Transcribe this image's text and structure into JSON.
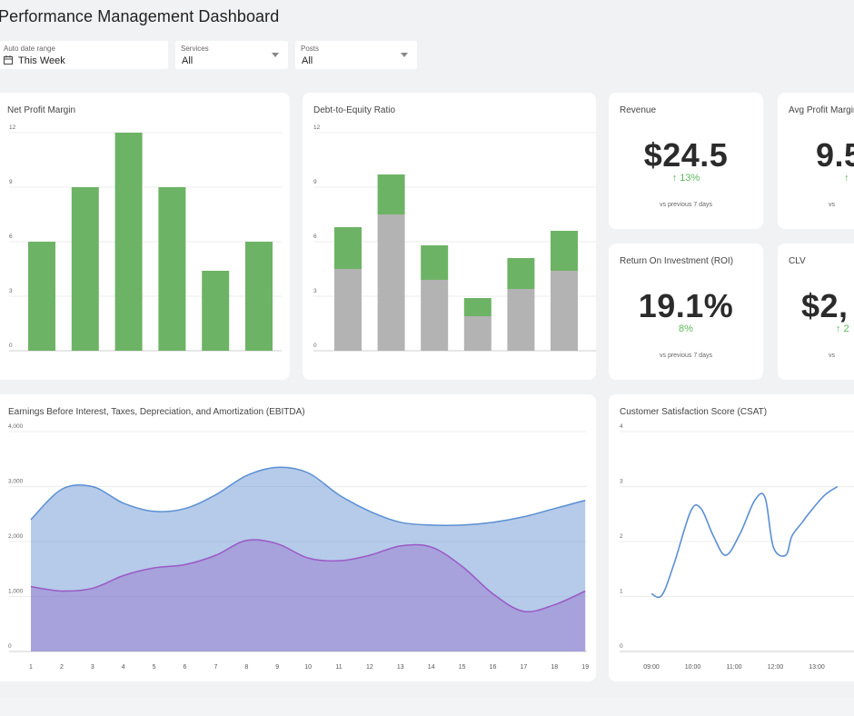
{
  "header": {
    "title": "Performance Management Dashboard"
  },
  "filters": {
    "date": {
      "label": "Auto date range",
      "value": "This Week"
    },
    "services": {
      "label": "Services",
      "value": "All"
    },
    "posts": {
      "label": "Posts",
      "value": "All"
    }
  },
  "colors": {
    "green": "#6db365",
    "gray": "#b3b3b3",
    "blue": "#5b8fd4",
    "purple": "#9b59c6",
    "positive": "#5cb85c"
  },
  "kpis": {
    "revenue": {
      "title": "Revenue",
      "value": "$24.5",
      "change": "↑ 13%",
      "sub": "vs previous 7 days"
    },
    "avg_profit_margin": {
      "title": "Avg Profit Margin",
      "value": "9.5",
      "change": "↑",
      "sub": "vs"
    },
    "roi": {
      "title": "Return On Investment (ROI)",
      "value": "19.1%",
      "change": "8%",
      "sub": "vs previous 7 days"
    },
    "clv": {
      "title": "CLV",
      "value": "$2,",
      "change": "↑ 2",
      "sub": "vs"
    }
  },
  "chart_data": [
    {
      "id": "net_profit",
      "type": "bar",
      "title": "Net Profit Margin",
      "ylim": [
        0,
        12
      ],
      "yticks": [
        "0",
        "3",
        "6",
        "9",
        "12"
      ],
      "values": [
        6,
        9,
        12,
        9,
        4.4,
        6
      ],
      "grid": true
    },
    {
      "id": "debt_equity",
      "type": "bar",
      "stacked": true,
      "title": "Debt-to-Equity Ratio",
      "ylim": [
        0,
        12
      ],
      "yticks": [
        "0",
        "3",
        "6",
        "9",
        "12"
      ],
      "series": [
        {
          "color": "#b3b3b3",
          "values": [
            4.5,
            7.5,
            3.9,
            1.9,
            3.4,
            4.4
          ]
        },
        {
          "color": "#6db365",
          "values": [
            2.3,
            2.2,
            1.9,
            1.0,
            1.7,
            2.2
          ]
        }
      ],
      "grid": true
    },
    {
      "id": "ebitda",
      "type": "area",
      "title": "Earnings Before Interest, Taxes, Depreciation, and Amortization (EBITDA)",
      "ylim": [
        0,
        4000
      ],
      "yticks": [
        "0",
        "1,000",
        "2,000",
        "3,000",
        "4,000"
      ],
      "x": [
        "1",
        "2",
        "3",
        "4",
        "5",
        "6",
        "7",
        "8",
        "9",
        "10",
        "11",
        "12",
        "13",
        "14",
        "15",
        "16",
        "17",
        "18",
        "19"
      ],
      "series": [
        {
          "color": "#5b8fd4",
          "values": [
            2400,
            2950,
            3000,
            2700,
            2550,
            2600,
            2850,
            3200,
            3350,
            3250,
            2850,
            2550,
            2350,
            2300,
            2300,
            2350,
            2450,
            2600,
            2750
          ]
        },
        {
          "color": "#9b59c6",
          "values": [
            1180,
            1100,
            1150,
            1380,
            1520,
            1580,
            1750,
            2020,
            1960,
            1700,
            1650,
            1750,
            1920,
            1900,
            1550,
            1050,
            730,
            850,
            1100
          ]
        }
      ],
      "grid": true
    },
    {
      "id": "csat",
      "type": "line",
      "title": "Customer Satisfaction Score (CSAT)",
      "ylim": [
        0,
        4
      ],
      "yticks": [
        "0",
        "1",
        "2",
        "3",
        "4"
      ],
      "xticks": [
        "09:00",
        "10:00",
        "11:00",
        "12:00",
        "13:00"
      ],
      "x": [
        0,
        0.25,
        0.55,
        0.95,
        1.2,
        1.5,
        1.8,
        2.15,
        2.5,
        2.75,
        2.95,
        3.25,
        3.4,
        3.65,
        3.85,
        4.2,
        4.5
      ],
      "values": [
        1.05,
        1.02,
        1.6,
        2.55,
        2.6,
        2.1,
        1.75,
        2.15,
        2.75,
        2.8,
        1.9,
        1.75,
        2.1,
        2.35,
        2.55,
        2.85,
        3.0
      ],
      "color": "#5b8fd4",
      "grid": true
    }
  ]
}
